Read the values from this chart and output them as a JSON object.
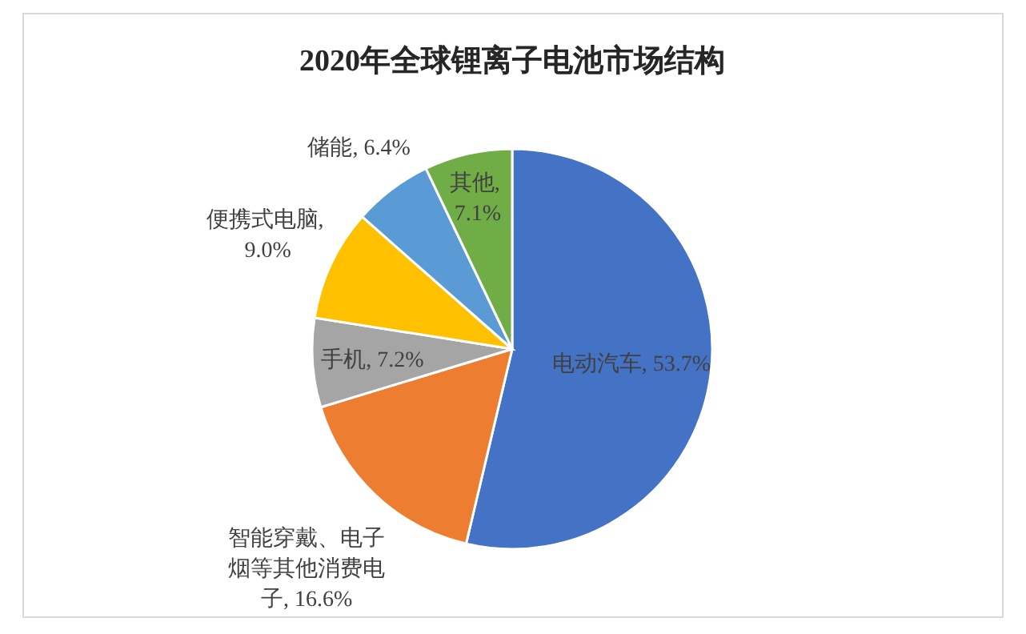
{
  "chart_data": {
    "type": "pie",
    "title": "2020年全球锂离子电池市场结构",
    "categories": [
      "电动汽车, 53.7%",
      "智能穿戴、电子烟等其他消费电子, 16.6%",
      "手机, 7.2%",
      "便携式电脑, 9.0%",
      "储能, 6.4%",
      "其他, 7.1%"
    ],
    "values": [
      53.7,
      16.6,
      7.2,
      9.0,
      6.4,
      7.1
    ],
    "colors": [
      "#4472c4",
      "#ed7d31",
      "#a5a5a5",
      "#ffc000",
      "#5b9bd5",
      "#70ad47"
    ]
  }
}
